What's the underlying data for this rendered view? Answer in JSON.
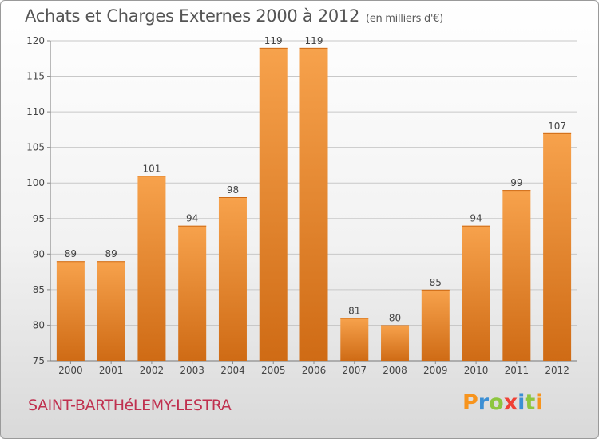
{
  "header": {
    "title": "Achats et Charges Externes 2000 à 2012",
    "subtitle": "(en milliers d'€)"
  },
  "footer": {
    "town": "SAINT-BARTHéLEMY-LESTRA"
  },
  "logo": {
    "text": "Proxiti",
    "letter_colors": [
      "#f7941d",
      "#3b8fd4",
      "#8dc63f",
      "#ef4136",
      "#3b8fd4",
      "#8dc63f",
      "#f7941d"
    ]
  },
  "colors": {
    "bar_light": "#f7a24c",
    "bar_dark": "#cf6b15",
    "grid": "#c8c8c8",
    "axis_text": "#444444"
  },
  "chart_data": {
    "type": "bar",
    "categories": [
      "2000",
      "2001",
      "2002",
      "2003",
      "2004",
      "2005",
      "2006",
      "2007",
      "2008",
      "2009",
      "2010",
      "2011",
      "2012"
    ],
    "values": [
      89,
      89,
      101,
      94,
      98,
      119,
      119,
      81,
      80,
      85,
      94,
      99,
      107
    ],
    "ylim": [
      75,
      120
    ],
    "yticks": [
      75,
      80,
      85,
      90,
      95,
      100,
      105,
      110,
      115,
      120
    ],
    "grid": true,
    "legend": "none"
  }
}
